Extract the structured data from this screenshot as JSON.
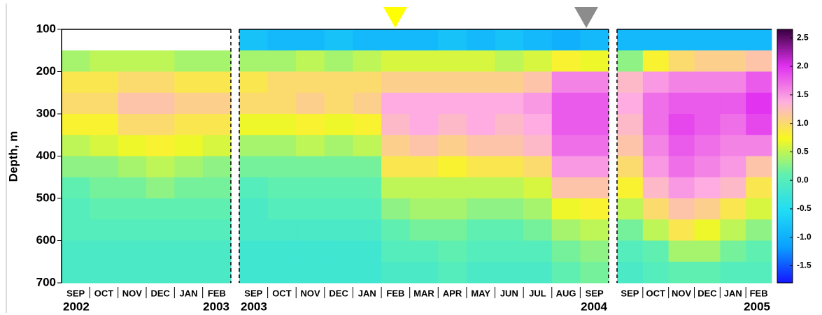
{
  "chart_data": {
    "type": "heatmap",
    "y_label": "Depth, m",
    "ylim": [
      700,
      100
    ],
    "yticks": [
      100,
      200,
      300,
      400,
      500,
      600,
      700
    ],
    "depth_bins": [
      100,
      150,
      200,
      250,
      300,
      350,
      400,
      450,
      500,
      550,
      600,
      650,
      700
    ],
    "clim": [
      -1.8,
      2.65
    ],
    "colormap": [
      "#1414ff",
      "#0aa0ff",
      "#20dcf5",
      "#60f0b0",
      "#f8f820",
      "#ffb0e0",
      "#e030f0",
      "#3a0040"
    ],
    "cticks": [
      {
        "value": 2.5,
        "label": "2.5"
      },
      {
        "value": 2.0,
        "label": "2.0"
      },
      {
        "value": 1.5,
        "label": "1.5"
      },
      {
        "value": 1.0,
        "label": "1.0"
      },
      {
        "value": 0.5,
        "label": "0.5"
      },
      {
        "value": 0.0,
        "label": "0.0"
      },
      {
        "value": -0.5,
        "label": "-0.5"
      },
      {
        "value": -1.0,
        "label": "-1.0"
      },
      {
        "value": -1.5,
        "label": "-1.5"
      }
    ],
    "panels": [
      {
        "x_labels": [
          "SEP",
          "OCT",
          "NOV",
          "DEC",
          "JAN",
          "FEB"
        ],
        "years": [
          "2002",
          "2003"
        ],
        "cells": [
          [
            null,
            null,
            null,
            null,
            null,
            null
          ],
          [
            0.4,
            0.5,
            0.5,
            0.5,
            0.4,
            0.4
          ],
          [
            0.9,
            0.9,
            1.0,
            1.0,
            0.9,
            0.9
          ],
          [
            1.0,
            1.0,
            1.2,
            1.2,
            1.1,
            1.1
          ],
          [
            0.8,
            0.8,
            1.0,
            1.0,
            0.9,
            0.9
          ],
          [
            0.5,
            0.6,
            0.7,
            0.8,
            0.7,
            0.6
          ],
          [
            0.3,
            0.3,
            0.4,
            0.5,
            0.4,
            0.3
          ],
          [
            0.1,
            0.2,
            0.2,
            0.3,
            0.2,
            0.2
          ],
          [
            0.0,
            0.1,
            0.1,
            0.1,
            0.1,
            0.1
          ],
          [
            0.0,
            0.0,
            0.0,
            0.0,
            0.0,
            0.0
          ],
          [
            -0.1,
            -0.1,
            -0.1,
            -0.1,
            -0.1,
            -0.1
          ],
          [
            -0.1,
            -0.1,
            -0.1,
            -0.1,
            -0.1,
            -0.1
          ]
        ]
      },
      {
        "x_labels": [
          "SEP",
          "OCT",
          "NOV",
          "DEC",
          "JAN",
          "FEB",
          "MAR",
          "APR",
          "MAY",
          "JUN",
          "JUL",
          "AUG",
          "SEP"
        ],
        "years": [
          "2003",
          "2004"
        ],
        "cells": [
          [
            -0.8,
            -0.9,
            -0.9,
            -0.8,
            -0.9,
            -0.9,
            -0.9,
            -0.8,
            -0.9,
            -0.8,
            -0.9,
            -1.0,
            -0.9
          ],
          [
            0.4,
            0.4,
            0.5,
            0.4,
            0.5,
            0.6,
            0.6,
            0.6,
            0.6,
            0.5,
            0.6,
            0.8,
            0.7
          ],
          [
            0.9,
            1.0,
            1.0,
            1.0,
            1.0,
            1.1,
            1.1,
            1.1,
            1.1,
            1.1,
            1.2,
            1.6,
            1.6
          ],
          [
            1.0,
            1.0,
            1.1,
            1.0,
            1.1,
            1.4,
            1.4,
            1.4,
            1.4,
            1.4,
            1.5,
            1.8,
            1.8
          ],
          [
            0.7,
            0.7,
            0.8,
            0.7,
            0.8,
            1.3,
            1.4,
            1.3,
            1.4,
            1.3,
            1.4,
            1.8,
            1.8
          ],
          [
            0.4,
            0.4,
            0.5,
            0.4,
            0.5,
            1.1,
            1.2,
            1.1,
            1.2,
            1.2,
            1.3,
            1.7,
            1.7
          ],
          [
            0.2,
            0.2,
            0.2,
            0.2,
            0.2,
            0.9,
            0.9,
            0.8,
            0.9,
            0.9,
            1.0,
            1.5,
            1.5
          ],
          [
            0.0,
            0.1,
            0.1,
            0.1,
            0.1,
            0.5,
            0.5,
            0.5,
            0.5,
            0.5,
            0.6,
            1.2,
            1.2
          ],
          [
            -0.1,
            0.0,
            0.0,
            0.0,
            0.0,
            0.3,
            0.4,
            0.4,
            0.3,
            0.3,
            0.4,
            0.7,
            0.8
          ],
          [
            -0.1,
            -0.1,
            -0.1,
            -0.1,
            -0.1,
            0.1,
            0.2,
            0.2,
            0.1,
            0.1,
            0.2,
            0.4,
            0.5
          ],
          [
            -0.2,
            -0.2,
            -0.2,
            -0.2,
            -0.2,
            0.0,
            0.0,
            0.1,
            0.0,
            0.0,
            0.0,
            0.2,
            0.3
          ],
          [
            -0.2,
            -0.2,
            -0.2,
            -0.2,
            -0.2,
            -0.1,
            -0.1,
            0.0,
            -0.1,
            -0.1,
            -0.1,
            0.1,
            0.2
          ]
        ]
      },
      {
        "x_labels": [
          "SEP",
          "OCT",
          "NOV",
          "DEC",
          "JAN",
          "FEB"
        ],
        "years": [
          null,
          "2005"
        ],
        "cells": [
          [
            -0.9,
            -0.9,
            -0.9,
            -0.9,
            -0.9,
            -0.9
          ],
          [
            0.3,
            0.8,
            1.0,
            1.1,
            1.1,
            1.2
          ],
          [
            1.3,
            1.5,
            1.6,
            1.6,
            1.6,
            1.8
          ],
          [
            1.4,
            1.7,
            1.8,
            1.8,
            1.8,
            2.0
          ],
          [
            1.3,
            1.7,
            1.9,
            1.8,
            1.7,
            1.9
          ],
          [
            1.2,
            1.6,
            1.8,
            1.7,
            1.6,
            1.6
          ],
          [
            1.0,
            1.5,
            1.7,
            1.6,
            1.5,
            1.2
          ],
          [
            0.8,
            1.3,
            1.5,
            1.4,
            1.3,
            0.9
          ],
          [
            0.5,
            1.0,
            1.2,
            1.1,
            0.9,
            0.6
          ],
          [
            0.2,
            0.5,
            0.9,
            0.7,
            0.5,
            0.3
          ],
          [
            0.0,
            0.1,
            0.4,
            0.4,
            0.2,
            0.1
          ],
          [
            -0.1,
            0.0,
            0.1,
            0.1,
            0.0,
            0.0
          ]
        ]
      }
    ]
  }
}
